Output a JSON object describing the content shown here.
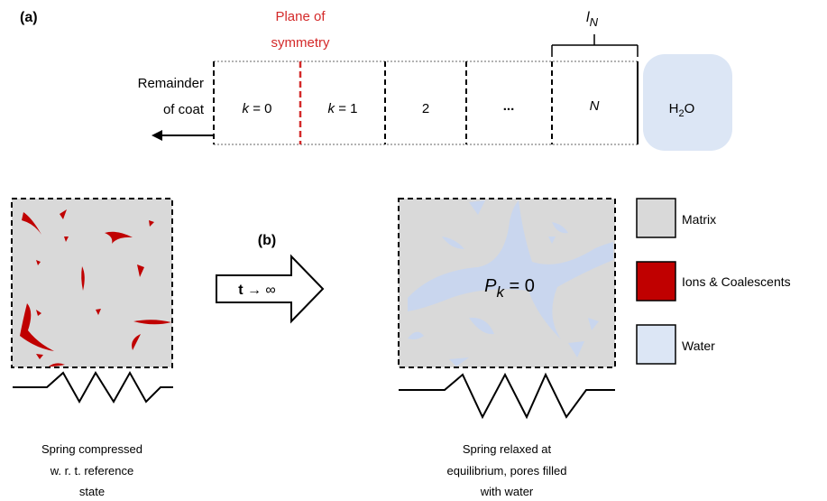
{
  "panel_a": {
    "label": "(a)",
    "remainder_line1": "Remainder",
    "remainder_line2": "of coat",
    "plane_line1": "Plane of",
    "plane_line2": "symmetry",
    "cells": [
      {
        "k_var": "k",
        "k_eq": " = 0",
        "italic": true
      },
      {
        "k_var": "k",
        "k_eq": " = 1",
        "italic": true
      },
      {
        "text": "2"
      },
      {
        "text": "..."
      },
      {
        "text": "N",
        "italic": true
      }
    ],
    "lN_var": "l",
    "lN_sub": "N",
    "h2o_base": "H",
    "h2o_sub": "2",
    "h2o_rest": "O"
  },
  "panel_b": {
    "label": "(b)",
    "arrow_bold": "t",
    "arrow_rest": " → ∞",
    "pk_var": "P",
    "pk_sub": "k",
    "pk_rest": "  =  0",
    "left_caption": [
      "Spring compressed",
      "w. r. t. reference",
      "state"
    ],
    "right_caption": [
      "Spring relaxed at",
      "equilibrium, pores filled",
      "with water"
    ]
  },
  "legend": [
    {
      "label": "Matrix",
      "color": "#d9d9d9"
    },
    {
      "label": "Ions & Coalescents",
      "color": "#c00000"
    },
    {
      "label": "Water",
      "color": "#dce6f5"
    }
  ],
  "colors": {
    "plane": "#d42a2a",
    "matrix": "#d9d9d9",
    "ions": "#c00000",
    "water": "#dce6f5",
    "water_blob": "#c9d6ee"
  }
}
